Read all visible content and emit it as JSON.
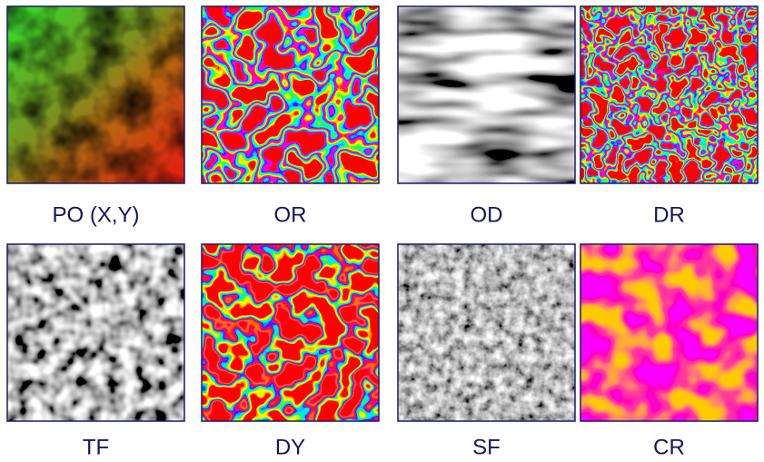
{
  "panels": [
    {
      "label": "PO (X,Y)"
    },
    {
      "label": "OR"
    },
    {
      "label": "OD"
    },
    {
      "label": "DR"
    },
    {
      "label": "TF"
    },
    {
      "label": "DY"
    },
    {
      "label": "SF"
    },
    {
      "label": "CR"
    }
  ]
}
